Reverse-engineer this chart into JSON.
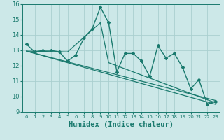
{
  "xlabel": "Humidex (Indice chaleur)",
  "ylabel": "",
  "bg_color": "#cce8e8",
  "line_color": "#1a7a6e",
  "grid_color": "#aacfcf",
  "xlim": [
    -0.5,
    23.5
  ],
  "ylim": [
    9,
    16
  ],
  "xticks": [
    0,
    1,
    2,
    3,
    4,
    5,
    6,
    7,
    8,
    9,
    10,
    11,
    12,
    13,
    14,
    15,
    16,
    17,
    18,
    19,
    20,
    21,
    22,
    23
  ],
  "yticks": [
    9,
    10,
    11,
    12,
    13,
    14,
    15,
    16
  ],
  "series": [
    {
      "x": [
        0,
        1,
        2,
        3,
        4,
        5,
        6,
        7,
        8,
        9,
        10,
        11,
        12,
        13,
        14,
        15,
        16,
        17,
        18,
        19,
        20,
        21,
        22,
        23
      ],
      "y": [
        13.4,
        12.9,
        13.0,
        13.0,
        12.9,
        12.3,
        12.7,
        13.8,
        14.4,
        15.8,
        14.8,
        11.6,
        12.8,
        12.8,
        12.3,
        11.3,
        13.3,
        12.5,
        12.8,
        11.9,
        10.5,
        11.1,
        9.5,
        9.7
      ],
      "marker": true,
      "linewidth": 1.0
    },
    {
      "x": [
        0,
        23
      ],
      "y": [
        12.95,
        9.75
      ],
      "marker": false,
      "linewidth": 0.9
    },
    {
      "x": [
        0,
        23
      ],
      "y": [
        12.95,
        9.5
      ],
      "marker": false,
      "linewidth": 0.9
    },
    {
      "x": [
        0,
        5,
        9,
        10,
        23
      ],
      "y": [
        12.95,
        12.9,
        14.8,
        12.2,
        9.6
      ],
      "marker": false,
      "linewidth": 0.9
    }
  ]
}
